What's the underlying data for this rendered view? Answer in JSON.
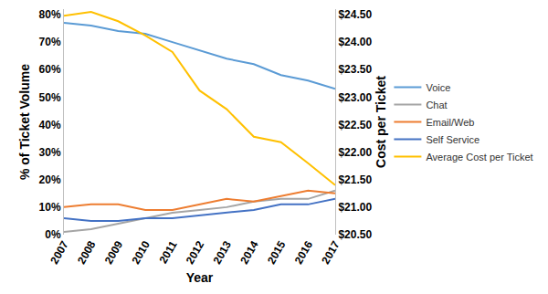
{
  "chart_data": {
    "type": "line",
    "x_label": "Year",
    "y_label": "% of Ticket Volume",
    "y2_label": "Cost per Ticket",
    "categories": [
      "2007",
      "2008",
      "2009",
      "2010",
      "2011",
      "2012",
      "2013",
      "2014",
      "2015",
      "2016",
      "2017"
    ],
    "series": [
      {
        "name": "Voice",
        "color": "#5b9bd5",
        "values": [
          77,
          76,
          74,
          73,
          70,
          67,
          64,
          62,
          58,
          56,
          53
        ]
      },
      {
        "name": "Chat",
        "color": "#a5a5a5",
        "values": [
          1,
          2,
          4,
          6,
          8,
          9,
          10,
          12,
          13,
          13,
          16
        ]
      },
      {
        "name": "Email/Web",
        "color": "#ed7d31",
        "values": [
          10,
          11,
          11,
          9,
          9,
          11,
          13,
          12,
          14,
          16,
          15
        ]
      },
      {
        "name": "Self Service",
        "color": "#4472c4",
        "values": [
          6,
          5,
          5,
          6,
          6,
          7,
          8,
          9,
          11,
          11,
          13
        ]
      },
      {
        "name": "Average Cost per Ticket",
        "color": "#ffc000",
        "axis": "y2",
        "values": [
          24.48,
          24.55,
          24.38,
          24.12,
          23.82,
          23.12,
          22.78,
          22.28,
          22.18,
          21.8,
          21.4
        ]
      }
    ],
    "ylim": [
      0,
      82
    ],
    "yticks": [
      {
        "value": 0,
        "label": "0%"
      },
      {
        "value": 10,
        "label": "10%"
      },
      {
        "value": 20,
        "label": "20%"
      },
      {
        "value": 30,
        "label": "30%"
      },
      {
        "value": 40,
        "label": "40%"
      },
      {
        "value": 50,
        "label": "50%"
      },
      {
        "value": 60,
        "label": "60%"
      },
      {
        "value": 70,
        "label": "70%"
      },
      {
        "value": 80,
        "label": "80%"
      }
    ],
    "y2lim": [
      20.5,
      24.6
    ],
    "y2ticks": [
      {
        "value": 20.5,
        "label": "$20.50"
      },
      {
        "value": 21,
        "label": "$21.00"
      },
      {
        "value": 21.5,
        "label": "$21.50"
      },
      {
        "value": 22,
        "label": "$22.00"
      },
      {
        "value": 22.5,
        "label": "$22.50"
      },
      {
        "value": 23,
        "label": "$23.00"
      },
      {
        "value": 23.5,
        "label": "$23.50"
      },
      {
        "value": 24,
        "label": "$24.00"
      },
      {
        "value": 24.5,
        "label": "$24.50"
      }
    ],
    "grid": false,
    "legend": "right"
  }
}
